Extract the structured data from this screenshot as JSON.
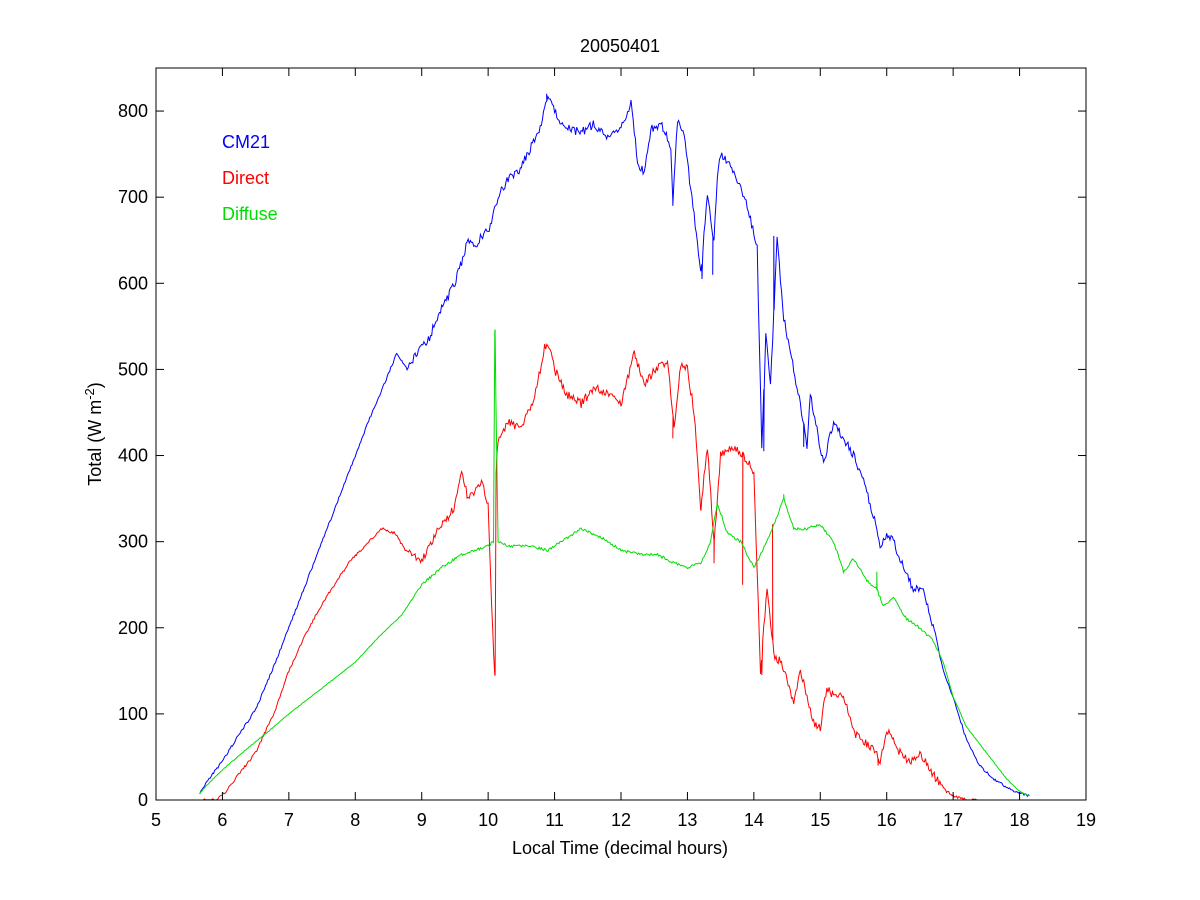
{
  "chart_data": {
    "type": "line",
    "title": "20050401",
    "xlabel": "Local Time (decimal hours)",
    "ylabel_main": "Total (W m",
    "ylabel_sup": "-2",
    "ylabel_end": ")",
    "xlim": [
      5,
      19
    ],
    "ylim": [
      0,
      850
    ],
    "xticks": [
      5,
      6,
      7,
      8,
      9,
      10,
      11,
      12,
      13,
      14,
      15,
      16,
      17,
      18,
      19
    ],
    "yticks": [
      0,
      100,
      200,
      300,
      400,
      500,
      600,
      700,
      800
    ],
    "grid": false,
    "legend_position": "top-left",
    "series": [
      {
        "name": "CM21",
        "color": "#0000ff",
        "x": [
          5.66,
          5.8,
          6.0,
          6.2,
          6.5,
          6.8,
          7.0,
          7.3,
          7.6,
          7.9,
          8.2,
          8.5,
          8.62,
          8.7,
          8.78,
          8.9,
          9.0,
          9.1,
          9.3,
          9.5,
          9.6,
          9.7,
          9.75,
          9.8,
          9.9,
          10.0,
          10.1,
          10.2,
          10.3,
          10.45,
          10.6,
          10.75,
          10.85,
          10.9,
          10.95,
          11.05,
          11.2,
          11.4,
          11.6,
          11.8,
          12.0,
          12.15,
          12.25,
          12.35,
          12.45,
          12.6,
          12.75,
          12.78,
          12.85,
          12.95,
          13.1,
          13.2,
          13.3,
          13.4,
          13.45,
          13.5,
          13.7,
          13.9,
          14.05,
          14.12,
          14.18,
          14.25,
          14.35,
          14.45,
          14.6,
          14.7,
          14.8,
          14.85,
          14.95,
          15.05,
          15.2,
          15.35,
          15.5,
          15.65,
          15.8,
          15.9,
          16.0,
          16.1,
          16.25,
          16.4,
          16.55,
          16.7,
          16.85,
          17.0,
          17.2,
          17.4,
          17.6,
          17.8,
          18.0,
          18.15
        ],
        "y": [
          8,
          25,
          45,
          70,
          105,
          160,
          200,
          260,
          320,
          380,
          440,
          495,
          518,
          510,
          500,
          515,
          525,
          535,
          570,
          600,
          625,
          650,
          645,
          640,
          655,
          660,
          685,
          710,
          720,
          730,
          750,
          775,
          800,
          820,
          810,
          790,
          780,
          775,
          785,
          770,
          780,
          810,
          740,
          730,
          780,
          785,
          760,
          695,
          790,
          770,
          680,
          610,
          700,
          650,
          720,
          750,
          730,
          690,
          640,
          410,
          540,
          480,
          650,
          560,
          500,
          460,
          410,
          470,
          430,
          390,
          440,
          420,
          400,
          370,
          330,
          295,
          310,
          300,
          270,
          245,
          245,
          200,
          150,
          120,
          70,
          40,
          25,
          15,
          8,
          5
        ],
        "spikes": [
          [
            10.88,
            820
          ],
          [
            12.78,
            690
          ],
          [
            13.22,
            605
          ],
          [
            13.38,
            610
          ],
          [
            14.15,
            405
          ],
          [
            14.3,
            655
          ],
          [
            14.75,
            410
          ]
        ]
      },
      {
        "name": "Direct",
        "color": "#ff0000",
        "x": [
          5.66,
          5.9,
          6.0,
          6.2,
          6.5,
          6.8,
          7.0,
          7.3,
          7.6,
          7.9,
          8.2,
          8.4,
          8.6,
          8.75,
          8.85,
          9.0,
          9.1,
          9.3,
          9.5,
          9.6,
          9.7,
          9.8,
          9.9,
          10.0,
          10.05,
          10.1,
          10.12,
          10.15,
          10.3,
          10.5,
          10.7,
          10.85,
          10.9,
          11.0,
          11.2,
          11.4,
          11.6,
          11.8,
          12.0,
          12.1,
          12.2,
          12.35,
          12.5,
          12.7,
          12.8,
          12.9,
          13.0,
          13.1,
          13.2,
          13.3,
          13.4,
          13.5,
          13.7,
          13.85,
          14.0,
          14.1,
          14.2,
          14.3,
          14.4,
          14.5,
          14.6,
          14.7,
          14.8,
          14.9,
          15.0,
          15.1,
          15.2,
          15.3,
          15.4,
          15.5,
          15.6,
          15.8,
          15.9,
          16.0,
          16.1,
          16.2,
          16.35,
          16.5,
          16.7,
          16.9,
          17.0,
          17.2,
          17.4
        ],
        "y": [
          0,
          0,
          5,
          25,
          55,
          105,
          150,
          200,
          240,
          275,
          300,
          315,
          310,
          290,
          285,
          275,
          295,
          320,
          340,
          380,
          350,
          360,
          370,
          340,
          225,
          145,
          385,
          420,
          440,
          430,
          470,
          525,
          530,
          500,
          470,
          460,
          480,
          470,
          460,
          490,
          520,
          480,
          500,
          510,
          430,
          505,
          500,
          450,
          340,
          410,
          300,
          400,
          410,
          400,
          380,
          150,
          250,
          170,
          160,
          140,
          110,
          150,
          120,
          90,
          85,
          130,
          120,
          125,
          110,
          80,
          70,
          60,
          45,
          80,
          70,
          55,
          45,
          55,
          30,
          10,
          5,
          0,
          0
        ],
        "spikes": [
          [
            10.1,
            145
          ],
          [
            12.78,
            420
          ],
          [
            13.2,
            340
          ],
          [
            13.4,
            275
          ],
          [
            13.83,
            250
          ],
          [
            14.12,
            145
          ],
          [
            14.28,
            320
          ],
          [
            15.87,
            40
          ]
        ]
      },
      {
        "name": "Diffuse",
        "color": "#00dd00",
        "x": [
          5.66,
          5.8,
          6.0,
          6.3,
          6.7,
          7.0,
          7.5,
          8.0,
          8.3,
          8.7,
          9.0,
          9.3,
          9.6,
          9.8,
          10.0,
          10.08,
          10.1,
          10.15,
          10.3,
          10.6,
          10.9,
          11.1,
          11.4,
          11.7,
          12.0,
          12.3,
          12.55,
          12.8,
          13.0,
          13.2,
          13.35,
          13.45,
          13.6,
          13.8,
          14.0,
          14.2,
          14.35,
          14.45,
          14.6,
          14.8,
          15.0,
          15.2,
          15.35,
          15.5,
          15.7,
          15.85,
          15.95,
          16.1,
          16.3,
          16.5,
          16.7,
          16.85,
          17.0,
          17.2,
          17.5,
          17.8,
          18.0,
          18.15
        ],
        "y": [
          8,
          20,
          35,
          55,
          80,
          100,
          130,
          160,
          185,
          215,
          250,
          270,
          285,
          290,
          295,
          300,
          545,
          300,
          295,
          295,
          290,
          300,
          315,
          305,
          290,
          285,
          285,
          275,
          270,
          275,
          300,
          345,
          310,
          300,
          270,
          300,
          330,
          350,
          315,
          315,
          320,
          300,
          265,
          280,
          255,
          245,
          225,
          235,
          210,
          200,
          185,
          160,
          120,
          85,
          55,
          25,
          10,
          5
        ],
        "spikes": [
          [
            10.1,
            545
          ],
          [
            14.45,
            355
          ],
          [
            15.85,
            265
          ]
        ]
      }
    ]
  },
  "legend": {
    "items": [
      {
        "label": "CM21",
        "color": "#0000ff"
      },
      {
        "label": "Direct",
        "color": "#ff0000"
      },
      {
        "label": "Diffuse",
        "color": "#00dd00"
      }
    ]
  }
}
